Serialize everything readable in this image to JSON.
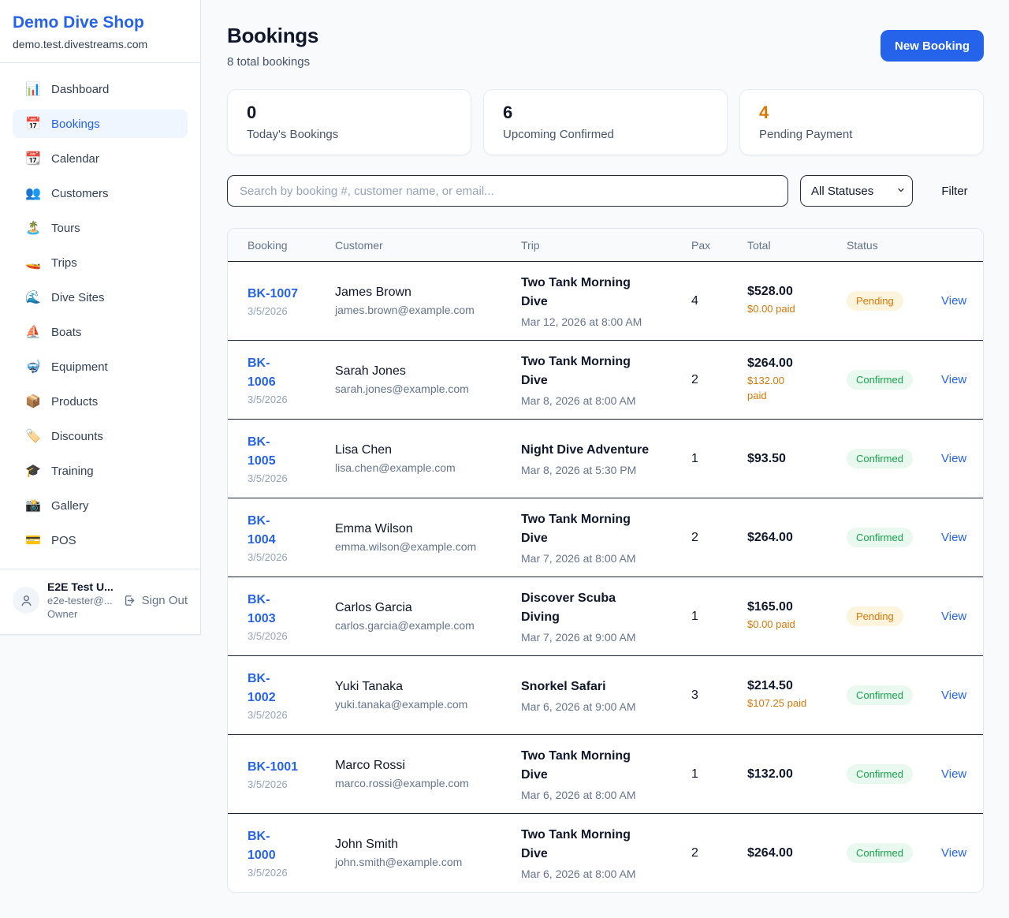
{
  "sidebar": {
    "brand": {
      "name": "Demo Dive Shop",
      "domain": "demo.test.divestreams.com"
    },
    "nav": [
      {
        "name": "dashboard",
        "glyph": "📊",
        "label": "Dashboard",
        "active": false
      },
      {
        "name": "bookings",
        "glyph": "📅",
        "label": "Bookings",
        "active": true
      },
      {
        "name": "calendar",
        "glyph": "📆",
        "label": "Calendar",
        "active": false
      },
      {
        "name": "customers",
        "glyph": "👥",
        "label": "Customers",
        "active": false
      },
      {
        "name": "tours",
        "glyph": "🏝️",
        "label": "Tours",
        "active": false
      },
      {
        "name": "trips",
        "glyph": "🚤",
        "label": "Trips",
        "active": false
      },
      {
        "name": "dive-sites",
        "glyph": "🌊",
        "label": "Dive Sites",
        "active": false
      },
      {
        "name": "boats",
        "glyph": "⛵",
        "label": "Boats",
        "active": false
      },
      {
        "name": "equipment",
        "glyph": "🤿",
        "label": "Equipment",
        "active": false
      },
      {
        "name": "products",
        "glyph": "📦",
        "label": "Products",
        "active": false
      },
      {
        "name": "discounts",
        "glyph": "🏷️",
        "label": "Discounts",
        "active": false
      },
      {
        "name": "training",
        "glyph": "🎓",
        "label": "Training",
        "active": false
      },
      {
        "name": "gallery",
        "glyph": "📸",
        "label": "Gallery",
        "active": false
      },
      {
        "name": "pos",
        "glyph": "💳",
        "label": "POS",
        "active": false
      }
    ],
    "user": {
      "name": "E2E Test U...",
      "email": "e2e-tester@...",
      "role": "Owner",
      "sign_out_label": "Sign Out"
    }
  },
  "header": {
    "title": "Bookings",
    "subtitle": "8 total bookings",
    "new_booking_label": "New Booking"
  },
  "stats": [
    {
      "value": "0",
      "label": "Today's Bookings",
      "color": "#0f172a"
    },
    {
      "value": "6",
      "label": "Upcoming Confirmed",
      "color": "#0f172a"
    },
    {
      "value": "4",
      "label": "Pending Payment",
      "color": "#d97706"
    }
  ],
  "filters": {
    "search_placeholder": "Search by booking #, customer name, or email...",
    "search_value": "",
    "status_selected": "All Statuses",
    "filter_label": "Filter"
  },
  "table": {
    "columns": [
      "Booking",
      "Customer",
      "Trip",
      "Pax",
      "Total",
      "Status"
    ],
    "view_label": "View",
    "rows": [
      {
        "id": "BK-1007",
        "id_display": "BK-1007",
        "booked_date": "3/5/2026",
        "customer_name": "James Brown",
        "customer_email": "james.brown@example.com",
        "trip_name": "Two Tank Morning Dive",
        "trip_display": "Two Tank Morning\nDive",
        "trip_datetime": "Mar 12, 2026 at 8:00 AM",
        "pax": "4",
        "total": "$528.00",
        "paid": "$0.00 paid",
        "status": "Pending"
      },
      {
        "id": "BK-1006",
        "id_display": "BK-\n1006",
        "booked_date": "3/5/2026",
        "customer_name": "Sarah Jones",
        "customer_email": "sarah.jones@example.com",
        "trip_name": "Two Tank Morning Dive",
        "trip_display": "Two Tank Morning\nDive",
        "trip_datetime": "Mar 8, 2026 at 8:00 AM",
        "pax": "2",
        "total": "$264.00",
        "paid": "$132.00\npaid",
        "status": "Confirmed"
      },
      {
        "id": "BK-1005",
        "id_display": "BK-\n1005",
        "booked_date": "3/5/2026",
        "customer_name": "Lisa Chen",
        "customer_email": "lisa.chen@example.com",
        "trip_name": "Night Dive Adventure",
        "trip_display": "Night Dive Adventure",
        "trip_datetime": "Mar 8, 2026 at 5:30 PM",
        "pax": "1",
        "total": "$93.50",
        "paid": "",
        "status": "Confirmed"
      },
      {
        "id": "BK-1004",
        "id_display": "BK-\n1004",
        "booked_date": "3/5/2026",
        "customer_name": "Emma Wilson",
        "customer_email": "emma.wilson@example.com",
        "trip_name": "Two Tank Morning Dive",
        "trip_display": "Two Tank Morning\nDive",
        "trip_datetime": "Mar 7, 2026 at 8:00 AM",
        "pax": "2",
        "total": "$264.00",
        "paid": "",
        "status": "Confirmed"
      },
      {
        "id": "BK-1003",
        "id_display": "BK-\n1003",
        "booked_date": "3/5/2026",
        "customer_name": "Carlos Garcia",
        "customer_email": "carlos.garcia@example.com",
        "trip_name": "Discover Scuba Diving",
        "trip_display": "Discover Scuba\nDiving",
        "trip_datetime": "Mar 7, 2026 at 9:00 AM",
        "pax": "1",
        "total": "$165.00",
        "paid": "$0.00 paid",
        "status": "Pending"
      },
      {
        "id": "BK-1002",
        "id_display": "BK-\n1002",
        "booked_date": "3/5/2026",
        "customer_name": "Yuki Tanaka",
        "customer_email": "yuki.tanaka@example.com",
        "trip_name": "Snorkel Safari",
        "trip_display": "Snorkel Safari",
        "trip_datetime": "Mar 6, 2026 at 9:00 AM",
        "pax": "3",
        "total": "$214.50",
        "paid": "$107.25 paid",
        "status": "Confirmed"
      },
      {
        "id": "BK-1001",
        "id_display": "BK-1001",
        "booked_date": "3/5/2026",
        "customer_name": "Marco Rossi",
        "customer_email": "marco.rossi@example.com",
        "trip_name": "Two Tank Morning Dive",
        "trip_display": "Two Tank Morning\nDive",
        "trip_datetime": "Mar 6, 2026 at 8:00 AM",
        "pax": "1",
        "total": "$132.00",
        "paid": "",
        "status": "Confirmed"
      },
      {
        "id": "BK-1000",
        "id_display": "BK-\n1000",
        "booked_date": "3/5/2026",
        "customer_name": "John Smith",
        "customer_email": "john.smith@example.com",
        "trip_name": "Two Tank Morning Dive",
        "trip_display": "Two Tank Morning\nDive",
        "trip_datetime": "Mar 6, 2026 at 8:00 AM",
        "pax": "2",
        "total": "$264.00",
        "paid": "",
        "status": "Confirmed"
      }
    ]
  },
  "colors": {
    "accent": "#2563eb",
    "pending_text": "#d97706",
    "pending_bg": "#fdf4dd",
    "confirmed_text": "#16a34a",
    "confirmed_bg": "#e9f9ef",
    "page_bg": "#f8fafc"
  }
}
